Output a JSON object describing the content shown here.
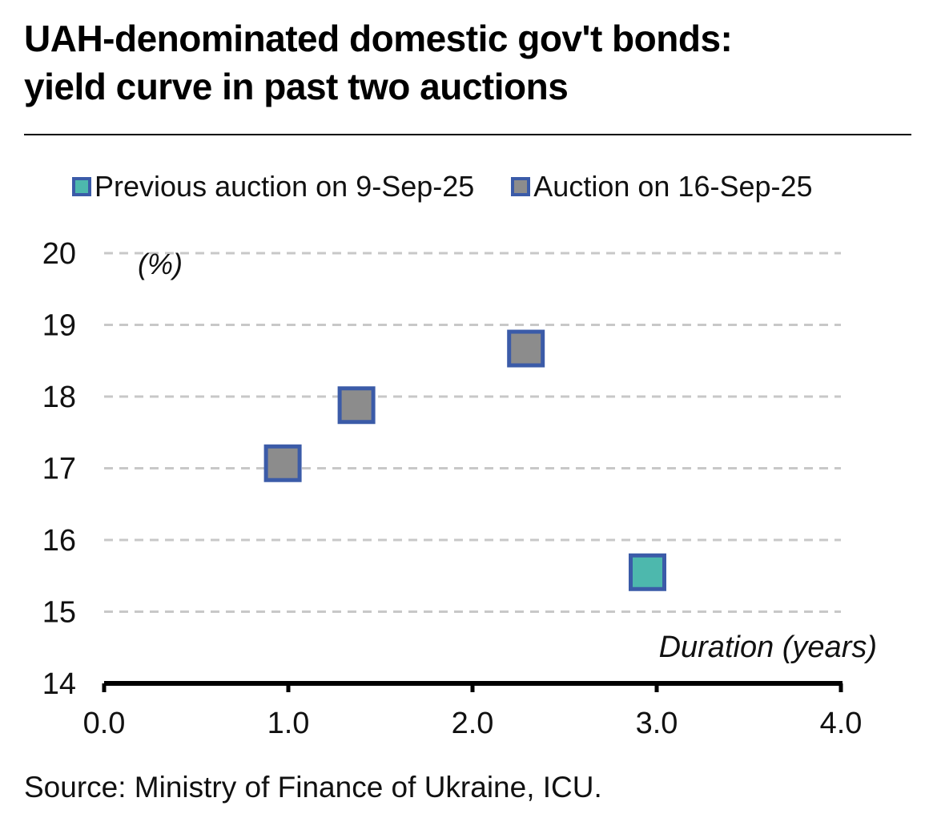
{
  "title_line1": "UAH-denominated domestic gov't bonds:",
  "title_line2": "yield curve in past two auctions",
  "source": "Source: Ministry of Finance of Ukraine, ICU.",
  "chart_data": {
    "type": "scatter",
    "y_unit_label": "(%)",
    "xlabel": "Duration (years)",
    "xlim": [
      0,
      4
    ],
    "ylim": [
      14,
      20
    ],
    "x_ticks": [
      "0.0",
      "1.0",
      "2.0",
      "3.0",
      "4.0"
    ],
    "y_ticks": [
      "14",
      "15",
      "16",
      "17",
      "18",
      "19",
      "20"
    ],
    "grid": "horizontal dashed",
    "legend_position": "top",
    "series": [
      {
        "name": "Previous auction on 9-Sep-25",
        "fill": "#4db8ad",
        "edge": "#3b5ba8",
        "points": [
          {
            "x": 2.95,
            "y": 15.55
          }
        ]
      },
      {
        "name": "Auction on 16-Sep-25",
        "fill": "#8c8c8c",
        "edge": "#3b5ba8",
        "points": [
          {
            "x": 0.97,
            "y": 17.07
          },
          {
            "x": 1.37,
            "y": 17.88
          },
          {
            "x": 2.29,
            "y": 18.67
          }
        ]
      }
    ]
  }
}
